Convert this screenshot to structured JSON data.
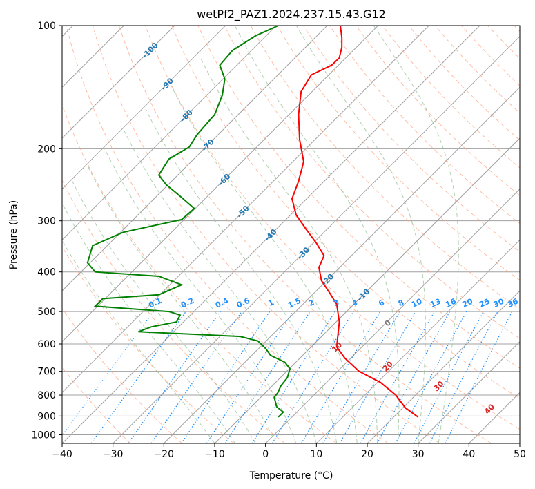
{
  "chart_data": {
    "type": "line",
    "title": "wetPf2_PAZ1.2024.237.15.43.G12",
    "xlabel": "Temperature (°C)",
    "ylabel": "Pressure (hPa)",
    "xlim": [
      -40,
      50
    ],
    "ylim": [
      1050,
      100
    ],
    "y_scale": "log",
    "x_ticks": [
      "−40",
      "−30",
      "−20",
      "−10",
      "0",
      "10",
      "20",
      "30",
      "40",
      "50"
    ],
    "x_tick_values": [
      -40,
      -30,
      -20,
      -10,
      0,
      10,
      20,
      30,
      40,
      50
    ],
    "y_ticks": [
      "100",
      "200",
      "300",
      "400",
      "500",
      "600",
      "700",
      "800",
      "900",
      "1000"
    ],
    "y_tick_values": [
      100,
      200,
      300,
      400,
      500,
      600,
      700,
      800,
      900,
      1000
    ],
    "grid": true,
    "colors": {
      "temperature": "#ff0000",
      "dewpoint": "#008000",
      "isotherm": "#a0a0a0",
      "dry_adiabat": "#ffa07a",
      "moist_adiabat": "#8fbc8f",
      "mixing_ratio": "#1e90ff",
      "label_blue": "#1f77b4",
      "label_red": "#d62728",
      "label_gray": "#808080"
    },
    "series": [
      {
        "name": "",
        "style": "temperature",
        "points": [
          [
            30.0,
            905
          ],
          [
            27.5,
            860
          ],
          [
            25.6,
            800
          ],
          [
            22.6,
            745
          ],
          [
            18.4,
            700
          ],
          [
            15.6,
            650
          ],
          [
            14.0,
            610
          ],
          [
            14.2,
            575
          ],
          [
            14.5,
            530
          ],
          [
            14.0,
            480
          ],
          [
            12.6,
            450
          ],
          [
            11.0,
            420
          ],
          [
            10.5,
            390
          ],
          [
            11.5,
            365
          ],
          [
            10.0,
            340
          ],
          [
            8.0,
            315
          ],
          [
            6.0,
            290
          ],
          [
            5.2,
            265
          ],
          [
            6.5,
            240
          ],
          [
            7.5,
            215
          ],
          [
            6.7,
            190
          ],
          [
            6.5,
            165
          ],
          [
            7.0,
            145
          ],
          [
            9.0,
            132
          ],
          [
            13.0,
            125
          ],
          [
            14.5,
            120
          ],
          [
            15.0,
            113
          ],
          [
            15.0,
            107
          ],
          [
            14.7,
            100
          ]
        ]
      },
      {
        "name": "",
        "style": "dewpoint",
        "points": [
          [
            2.5,
            905
          ],
          [
            3.5,
            880
          ],
          [
            2.2,
            855
          ],
          [
            1.7,
            810
          ],
          [
            2.4,
            790
          ],
          [
            3.0,
            760
          ],
          [
            4.3,
            725
          ],
          [
            4.8,
            690
          ],
          [
            3.8,
            665
          ],
          [
            1.0,
            640
          ],
          [
            0.0,
            615
          ],
          [
            -1.5,
            590
          ],
          [
            -5.0,
            575
          ],
          [
            -25.0,
            560
          ],
          [
            -22.5,
            545
          ],
          [
            -17.5,
            530
          ],
          [
            -16.8,
            510
          ],
          [
            -19.0,
            500
          ],
          [
            -33.5,
            485
          ],
          [
            -32.0,
            465
          ],
          [
            -21.0,
            455
          ],
          [
            -16.5,
            430
          ],
          [
            -21.0,
            410
          ],
          [
            -33.5,
            400
          ],
          [
            -35.0,
            380
          ],
          [
            -34.0,
            345
          ],
          [
            -28.0,
            320
          ],
          [
            -16.5,
            298
          ],
          [
            -14.0,
            280
          ],
          [
            -17.0,
            260
          ],
          [
            -19.5,
            245
          ],
          [
            -21.0,
            232
          ],
          [
            -19.0,
            212
          ],
          [
            -15.0,
            198
          ],
          [
            -13.5,
            185
          ],
          [
            -10.0,
            165
          ],
          [
            -8.5,
            148
          ],
          [
            -8.0,
            135
          ],
          [
            -9.0,
            125
          ],
          [
            -6.5,
            115
          ],
          [
            -2.0,
            106
          ],
          [
            2.5,
            100
          ]
        ]
      }
    ],
    "isotherm_labels": [
      "-100",
      "-90",
      "-80",
      "-70",
      "-60",
      "-50",
      "-40",
      "-30",
      "-20",
      "-10"
    ],
    "isotherm_label_values": [
      -100,
      -90,
      -80,
      -70,
      -60,
      -50,
      -40,
      -30,
      -20,
      -10
    ],
    "isotherm_label_pressures": [
      115,
      139,
      166,
      196,
      238,
      285,
      325,
      360,
      418,
      455
    ],
    "mixing_ratio_labels": [
      "0.1",
      "0.2",
      "0.4",
      "0.6",
      "1",
      "1.5",
      "2",
      "3",
      "4",
      "6",
      "8",
      "10",
      "13",
      "16",
      "20",
      "25",
      "30",
      "36"
    ],
    "mixing_ratio_values": [
      0.1,
      0.2,
      0.4,
      0.6,
      1,
      1.5,
      2,
      3,
      4,
      6,
      8,
      10,
      13,
      16,
      20,
      25,
      30,
      36
    ],
    "red_labels": [
      "10",
      "20",
      "30",
      "40"
    ],
    "gray_labels": [
      "0"
    ]
  }
}
